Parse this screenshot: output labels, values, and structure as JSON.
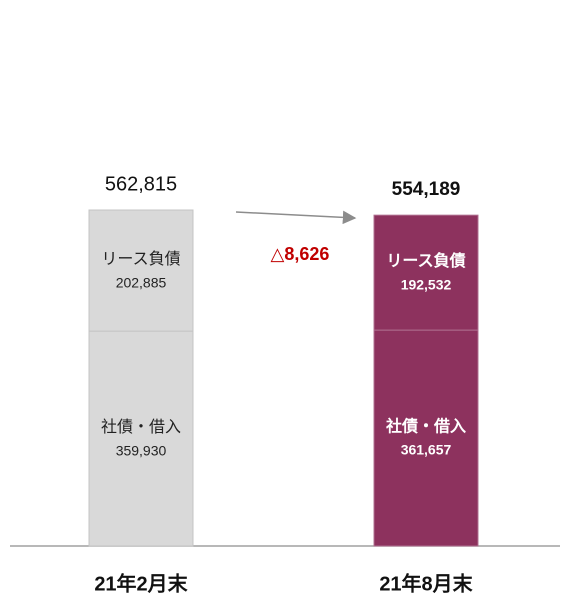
{
  "chart_data": {
    "type": "stacked_bar",
    "categories": [
      "21年2月末",
      "21年8月末"
    ],
    "series": [
      {
        "name": "社債・借入",
        "values": [
          359930,
          361657
        ],
        "value_labels": [
          "359,930",
          "361,657"
        ]
      },
      {
        "name": "リース負債",
        "values": [
          202885,
          192532
        ],
        "value_labels": [
          "202,885",
          "192,532"
        ]
      }
    ],
    "totals": [
      562815,
      554189
    ],
    "total_labels": [
      "562,815",
      "554,189"
    ],
    "bar_colors": [
      "#d9d9d9",
      "#8d325e"
    ],
    "label_colors": [
      "#222222",
      "#ffffff"
    ],
    "annotation": {
      "text": "△8,626",
      "color": "#c00000"
    }
  }
}
